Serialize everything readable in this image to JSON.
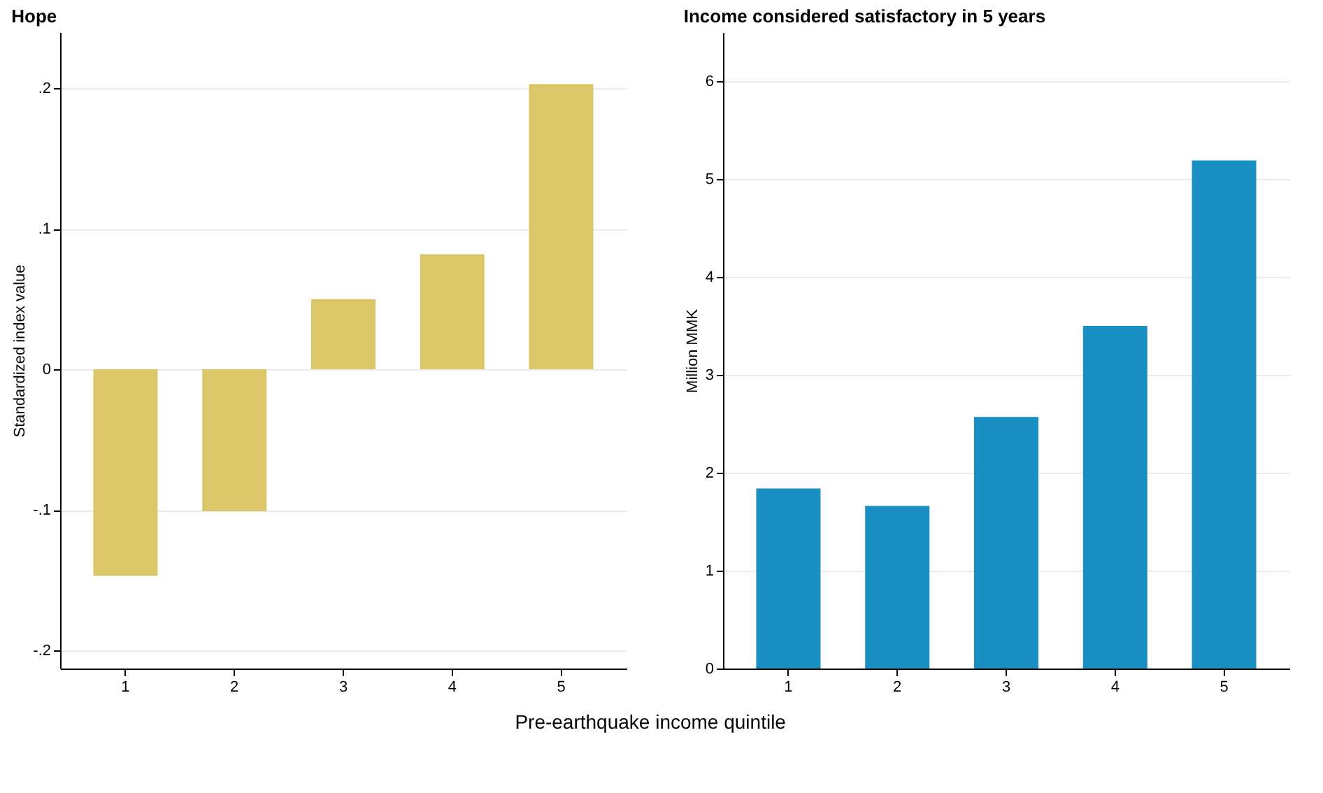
{
  "chart_data": [
    {
      "type": "bar",
      "title": "Hope",
      "xlabel": "Pre-earthquake income quintile",
      "ylabel": "Standardized index value",
      "categories": [
        "1",
        "2",
        "3",
        "4",
        "5"
      ],
      "values": [
        -0.147,
        -0.101,
        0.05,
        0.082,
        0.203
      ],
      "color": "#dbc76a",
      "ylim": [
        -0.213,
        0.24
      ],
      "yticks": [
        {
          "value": -0.2,
          "label": "-.2"
        },
        {
          "value": -0.1,
          "label": "-.1"
        },
        0,
        {
          "value": 0.1,
          "label": ".1"
        },
        {
          "value": 0.2,
          "label": ".2"
        }
      ],
      "grid": "y"
    },
    {
      "type": "bar",
      "title": "Income considered satisfactory in 5 years",
      "ylabel": "Million MMK",
      "categories": [
        "1",
        "2",
        "3",
        "4",
        "5"
      ],
      "values": [
        1.84,
        1.66,
        2.57,
        3.5,
        5.19
      ],
      "color": "#1a8fc1",
      "ylim": [
        0,
        6.5
      ],
      "yticks": [
        0,
        1,
        2,
        3,
        4,
        5,
        6
      ],
      "grid": "y"
    }
  ]
}
